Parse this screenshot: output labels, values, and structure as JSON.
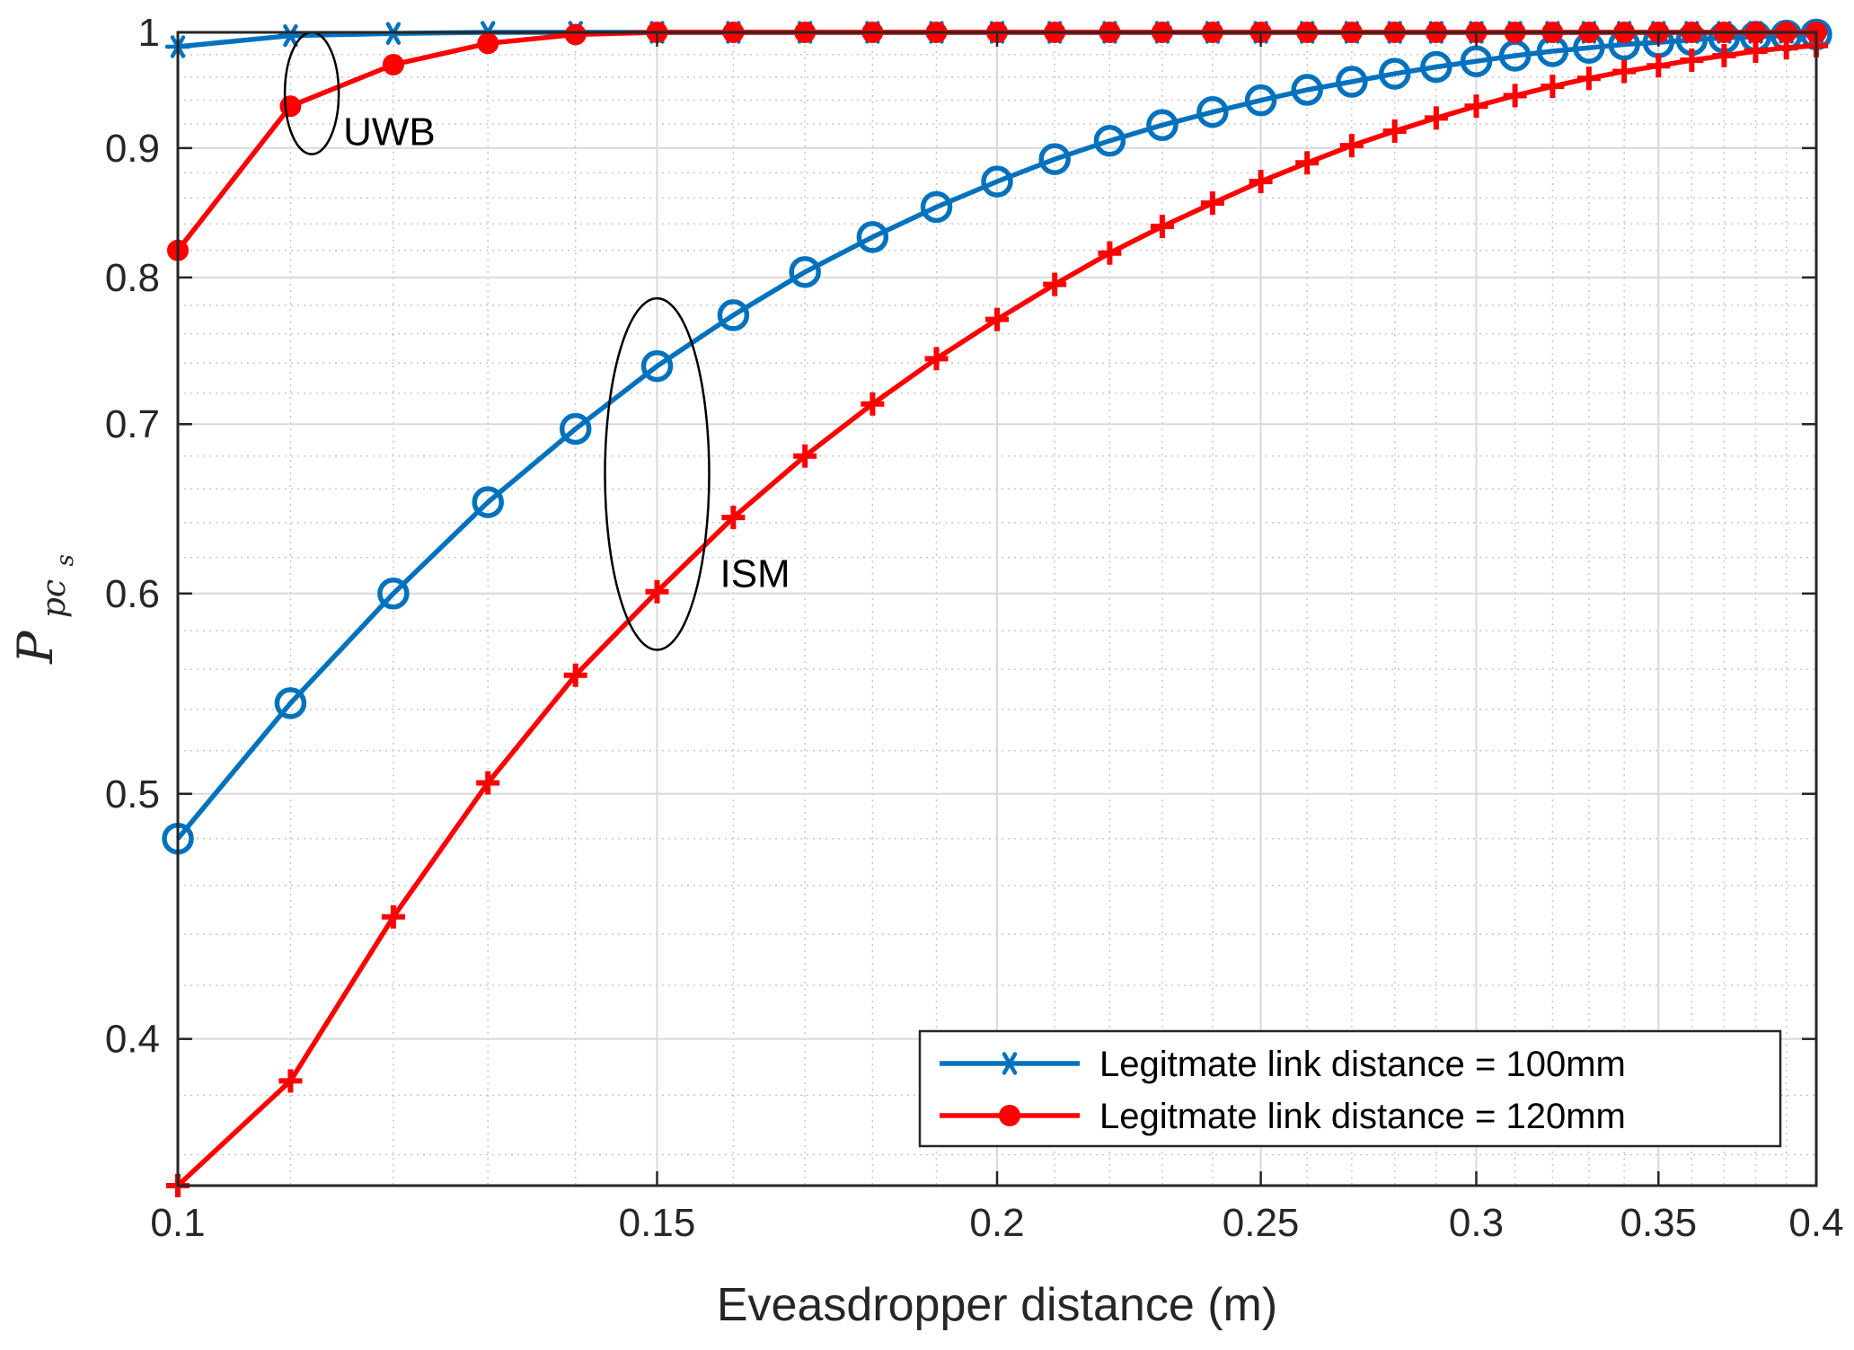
{
  "chart_data": {
    "type": "line",
    "xscale": "log",
    "yscale": "log",
    "xlim": [
      0.1,
      0.4
    ],
    "ylim": [
      0.35,
      1.0
    ],
    "xlabel": "Eveasdropper distance (m)",
    "ylabel_main": "P",
    "ylabel_sub": "pc",
    "ylabel_subsub": "s",
    "grid": true,
    "legend_location": "bottom-right",
    "x_ticks": [
      {
        "v": 0.1,
        "label": "0.1"
      },
      {
        "v": 0.15,
        "label": "0.15"
      },
      {
        "v": 0.2,
        "label": "0.2"
      },
      {
        "v": 0.25,
        "label": "0.25"
      },
      {
        "v": 0.3,
        "label": "0.3"
      },
      {
        "v": 0.35,
        "label": "0.35"
      },
      {
        "v": 0.4,
        "label": "0.4"
      }
    ],
    "y_ticks": [
      {
        "v": 0.4,
        "label": "0.4"
      },
      {
        "v": 0.5,
        "label": "0.5"
      },
      {
        "v": 0.6,
        "label": "0.6"
      },
      {
        "v": 0.7,
        "label": "0.7"
      },
      {
        "v": 0.8,
        "label": "0.8"
      },
      {
        "v": 0.9,
        "label": "0.9"
      },
      {
        "v": 1.0,
        "label": "1"
      }
    ],
    "x": [
      0.1,
      0.11,
      0.12,
      0.13,
      0.14,
      0.15,
      0.16,
      0.17,
      0.18,
      0.19,
      0.2,
      0.21,
      0.22,
      0.23,
      0.24,
      0.25,
      0.26,
      0.27,
      0.28,
      0.29,
      0.3,
      0.31,
      0.32,
      0.33,
      0.34,
      0.35,
      0.36,
      0.37,
      0.38,
      0.39,
      0.4
    ],
    "series": [
      {
        "name": "Legitmate link distance = 100mm",
        "band": "UWB",
        "color": "#0072BD",
        "marker": "asterisk",
        "values": [
          0.987,
          0.997,
          0.999,
          1.0,
          1.0,
          1.0,
          1.0,
          1.0,
          1.0,
          1.0,
          1.0,
          1.0,
          1.0,
          1.0,
          1.0,
          1.0,
          1.0,
          1.0,
          1.0,
          1.0,
          1.0,
          1.0,
          1.0,
          1.0,
          1.0,
          1.0,
          1.0,
          1.0,
          1.0,
          1.0,
          1.0
        ]
      },
      {
        "name": "Legitmate link distance = 120mm",
        "band": "UWB",
        "color": "#FF0000",
        "marker": "filled-circle",
        "values": [
          0.82,
          0.935,
          0.971,
          0.99,
          0.998,
          1.0,
          1.0,
          1.0,
          1.0,
          1.0,
          1.0,
          1.0,
          1.0,
          1.0,
          1.0,
          1.0,
          1.0,
          1.0,
          1.0,
          1.0,
          1.0,
          1.0,
          1.0,
          1.0,
          1.0,
          1.0,
          1.0,
          1.0,
          1.0,
          1.0,
          1.0
        ]
      },
      {
        "name": "Legitmate link distance = 100mm",
        "band": "ISM",
        "color": "#0072BD",
        "marker": "circle",
        "values": [
          0.48,
          0.543,
          0.6,
          0.652,
          0.697,
          0.738,
          0.773,
          0.804,
          0.83,
          0.853,
          0.873,
          0.891,
          0.906,
          0.919,
          0.93,
          0.94,
          0.949,
          0.956,
          0.963,
          0.969,
          0.974,
          0.979,
          0.983,
          0.986,
          0.989,
          0.991,
          0.993,
          0.995,
          0.996,
          0.997,
          0.998
        ]
      },
      {
        "name": "Legitmate link distance = 120mm",
        "band": "ISM",
        "color": "#FF0000",
        "marker": "plus",
        "values": [
          0.35,
          0.385,
          0.447,
          0.505,
          0.557,
          0.601,
          0.643,
          0.68,
          0.713,
          0.743,
          0.77,
          0.795,
          0.818,
          0.838,
          0.856,
          0.873,
          0.888,
          0.902,
          0.914,
          0.925,
          0.935,
          0.944,
          0.952,
          0.959,
          0.965,
          0.97,
          0.975,
          0.979,
          0.983,
          0.986,
          0.988
        ]
      }
    ],
    "legend": [
      {
        "label": "Legitmate link distance = 100mm",
        "color": "#0072BD",
        "marker": "asterisk"
      },
      {
        "label": "Legitmate link distance = 120mm",
        "color": "#FF0000",
        "marker": "filled-circle"
      }
    ],
    "annotations": [
      {
        "text": "UWB",
        "ellipse_x": 0.112,
        "ellipse_y": [
          0.895,
          1.0
        ]
      },
      {
        "text": "ISM",
        "ellipse_x": 0.15,
        "ellipse_y": [
          0.57,
          0.785
        ]
      }
    ]
  }
}
